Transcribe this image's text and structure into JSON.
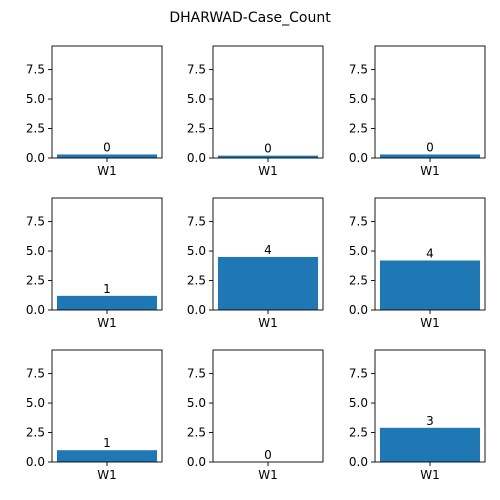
{
  "figure_title": "DHARWAD-Case_Count",
  "bar_color": "#1f77b4",
  "chart_data": [
    {
      "type": "bar",
      "categories": [
        "W1"
      ],
      "values": [
        0.3
      ],
      "data_label": "0",
      "ylim": [
        0,
        9.5
      ],
      "yticks": [
        "0.0",
        "2.5",
        "5.0",
        "7.5"
      ]
    },
    {
      "type": "bar",
      "categories": [
        "W1"
      ],
      "values": [
        0.2
      ],
      "data_label": "0",
      "ylim": [
        0,
        9.5
      ],
      "yticks": [
        "0.0",
        "2.5",
        "5.0",
        "7.5"
      ]
    },
    {
      "type": "bar",
      "categories": [
        "W1"
      ],
      "values": [
        0.3
      ],
      "data_label": "0",
      "ylim": [
        0,
        9.5
      ],
      "yticks": [
        "0.0",
        "2.5",
        "5.0",
        "7.5"
      ]
    },
    {
      "type": "bar",
      "categories": [
        "W1"
      ],
      "values": [
        1.2
      ],
      "data_label": "1",
      "ylim": [
        0,
        9.5
      ],
      "yticks": [
        "0.0",
        "2.5",
        "5.0",
        "7.5"
      ]
    },
    {
      "type": "bar",
      "categories": [
        "W1"
      ],
      "values": [
        4.5
      ],
      "data_label": "4",
      "ylim": [
        0,
        9.5
      ],
      "yticks": [
        "0.0",
        "2.5",
        "5.0",
        "7.5"
      ]
    },
    {
      "type": "bar",
      "categories": [
        "W1"
      ],
      "values": [
        4.2
      ],
      "data_label": "4",
      "ylim": [
        0,
        9.5
      ],
      "yticks": [
        "0.0",
        "2.5",
        "5.0",
        "7.5"
      ]
    },
    {
      "type": "bar",
      "categories": [
        "W1"
      ],
      "values": [
        1.0
      ],
      "data_label": "1",
      "ylim": [
        0,
        9.5
      ],
      "yticks": [
        "0.0",
        "2.5",
        "5.0",
        "7.5"
      ]
    },
    {
      "type": "bar",
      "categories": [
        "W1"
      ],
      "values": [
        0.0
      ],
      "data_label": "0",
      "ylim": [
        0,
        9.5
      ],
      "yticks": [
        "0.0",
        "2.5",
        "5.0",
        "7.5"
      ]
    },
    {
      "type": "bar",
      "categories": [
        "W1"
      ],
      "values": [
        2.9
      ],
      "data_label": "3",
      "ylim": [
        0,
        9.5
      ],
      "yticks": [
        "0.0",
        "2.5",
        "5.0",
        "7.5"
      ]
    }
  ]
}
